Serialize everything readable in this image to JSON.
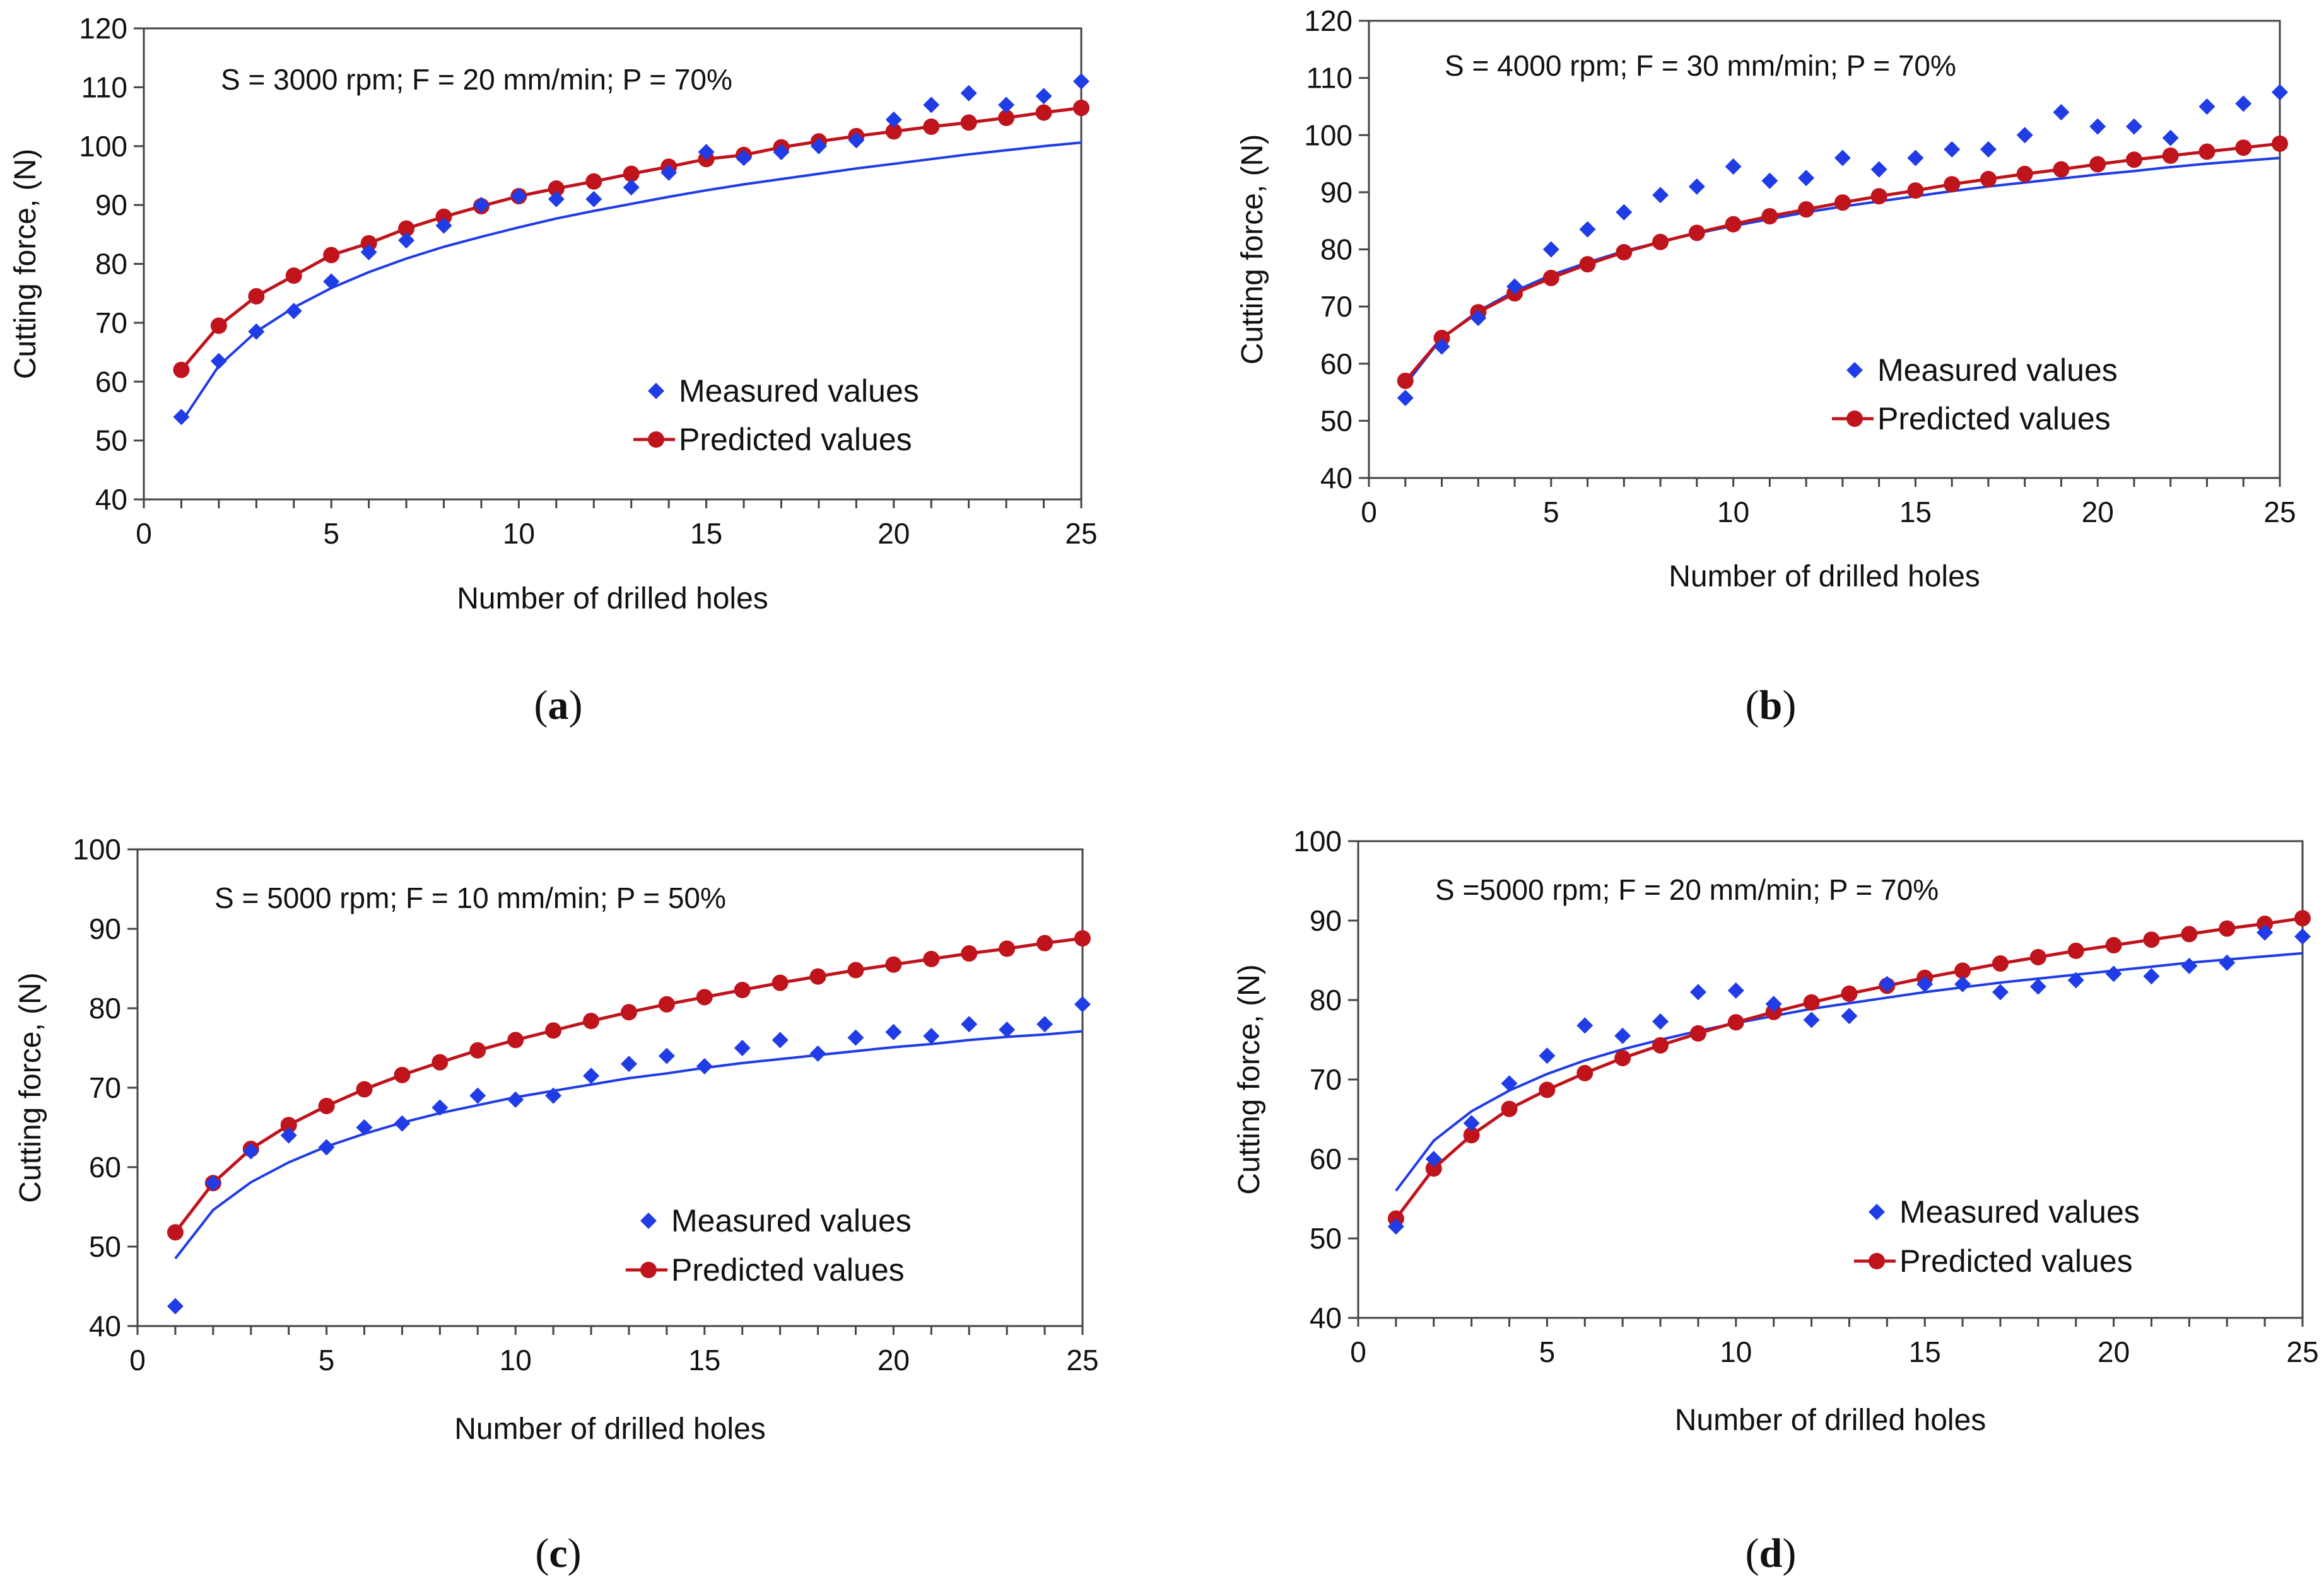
{
  "chart_data": [
    {
      "type": "scatter",
      "panel": "a",
      "annotation": "S = 3000 rpm; F = 20 mm/min; P = 70%",
      "xlabel": "Number of drilled holes",
      "ylabel": "Cutting force, (N)",
      "xlim": [
        0,
        25
      ],
      "ylim": [
        40,
        120
      ],
      "xticks": [
        0,
        5,
        10,
        15,
        20,
        25
      ],
      "yticks": [
        40,
        50,
        60,
        70,
        80,
        90,
        100,
        110,
        120
      ],
      "grid": false,
      "legend_position": "right-center",
      "series": [
        {
          "name": "Measured values",
          "style": "diamond-markers-with-trendline",
          "color": "#1f3ce6",
          "x": [
            1,
            2,
            3,
            4,
            5,
            6,
            7,
            8,
            9,
            10,
            11,
            12,
            13,
            14,
            15,
            16,
            17,
            18,
            19,
            20,
            21,
            22,
            23,
            24,
            25
          ],
          "y": [
            54,
            63.5,
            68.5,
            72,
            77,
            82,
            84,
            86.5,
            90,
            91.5,
            91,
            91,
            93,
            95.5,
            99,
            98,
            99,
            100,
            101,
            104.5,
            107,
            109,
            107,
            108.5,
            111
          ],
          "trendline": [
            53.1,
            62.7,
            68.5,
            72.6,
            75.9,
            78.6,
            80.9,
            82.9,
            84.6,
            86.2,
            87.7,
            89,
            90.2,
            91.4,
            92.5,
            93.5,
            94.4,
            95.3,
            96.2,
            97,
            97.8,
            98.6,
            99.3,
            100,
            100.6
          ]
        },
        {
          "name": "Predicted values",
          "style": "line-with-circle-markers",
          "color": "#c0141c",
          "x": [
            1,
            2,
            3,
            4,
            5,
            6,
            7,
            8,
            9,
            10,
            11,
            12,
            13,
            14,
            15,
            16,
            17,
            18,
            19,
            20,
            21,
            22,
            23,
            24,
            25
          ],
          "y": [
            62,
            69.5,
            74.5,
            78,
            81.5,
            83.5,
            86,
            88,
            89.8,
            91.5,
            92.8,
            94,
            95.3,
            96.5,
            97.8,
            98.5,
            99.8,
            100.8,
            101.7,
            102.5,
            103.3,
            104,
            104.8,
            105.7,
            106.5
          ]
        }
      ]
    },
    {
      "type": "scatter",
      "panel": "b",
      "annotation": "S = 4000 rpm; F = 30 mm/min; P = 70%",
      "xlabel": "Number of drilled holes",
      "ylabel": "Cutting force, (N)",
      "xlim": [
        0,
        25
      ],
      "ylim": [
        40,
        120
      ],
      "xticks": [
        0,
        5,
        10,
        15,
        20,
        25
      ],
      "yticks": [
        40,
        50,
        60,
        70,
        80,
        90,
        100,
        110,
        120
      ],
      "grid": false,
      "legend_position": "right-center",
      "series": [
        {
          "name": "Measured values",
          "style": "diamond-markers-with-trendline",
          "color": "#1f3ce6",
          "x": [
            1,
            2,
            3,
            4,
            5,
            6,
            7,
            8,
            9,
            10,
            11,
            12,
            13,
            14,
            15,
            16,
            17,
            18,
            19,
            20,
            21,
            22,
            23,
            24,
            25
          ],
          "y": [
            54,
            63,
            68,
            73.5,
            80,
            83.5,
            86.5,
            89.5,
            91,
            94.5,
            92,
            92.5,
            96,
            94,
            96,
            97.5,
            97.5,
            100,
            104,
            101.5,
            101.5,
            99.5,
            105,
            105.5,
            107.5
          ],
          "trendline": [
            56.3,
            64.5,
            69.2,
            72.7,
            75.5,
            77.7,
            79.7,
            81.3,
            82.8,
            84.1,
            85.3,
            86.5,
            87.5,
            88.4,
            89.3,
            90.2,
            91,
            91.7,
            92.4,
            93.1,
            93.7,
            94.4,
            95,
            95.5,
            96
          ]
        },
        {
          "name": "Predicted values",
          "style": "line-with-circle-markers",
          "color": "#c0141c",
          "x": [
            1,
            2,
            3,
            4,
            5,
            6,
            7,
            8,
            9,
            10,
            11,
            12,
            13,
            14,
            15,
            16,
            17,
            18,
            19,
            20,
            21,
            22,
            23,
            24,
            25
          ],
          "y": [
            57,
            64.5,
            69,
            72.3,
            75,
            77.4,
            79.5,
            81.3,
            82.9,
            84.4,
            85.8,
            87,
            88.2,
            89.3,
            90.3,
            91.4,
            92.3,
            93.2,
            94,
            94.9,
            95.7,
            96.4,
            97.1,
            97.8,
            98.5
          ]
        }
      ]
    },
    {
      "type": "scatter",
      "panel": "c",
      "annotation": "S = 5000 rpm; F = 10 mm/min; P = 50%",
      "xlabel": "Number of drilled holes",
      "ylabel": "Cutting force, (N)",
      "xlim": [
        0,
        25
      ],
      "ylim": [
        40,
        100
      ],
      "xticks": [
        0,
        5,
        10,
        15,
        20,
        25
      ],
      "yticks": [
        40,
        50,
        60,
        70,
        80,
        90,
        100
      ],
      "grid": false,
      "legend_position": "right-center",
      "series": [
        {
          "name": "Measured values",
          "style": "diamond-markers-with-trendline",
          "color": "#1f3ce6",
          "x": [
            1,
            2,
            3,
            4,
            5,
            6,
            7,
            8,
            9,
            10,
            11,
            12,
            13,
            14,
            15,
            16,
            17,
            18,
            19,
            20,
            21,
            22,
            23,
            24,
            25
          ],
          "y": [
            42.5,
            58,
            62,
            64,
            62.5,
            65,
            65.5,
            67.5,
            69,
            68.5,
            69,
            71.5,
            73,
            74,
            72.7,
            75,
            76,
            74.3,
            76.3,
            77,
            76.5,
            78,
            77.3,
            78,
            80.5
          ],
          "trendline": [
            48.5,
            54.6,
            58.1,
            60.6,
            62.6,
            64.2,
            65.6,
            66.8,
            67.8,
            68.8,
            69.6,
            70.4,
            71.2,
            71.8,
            72.5,
            73.1,
            73.6,
            74.1,
            74.6,
            75.1,
            75.5,
            76,
            76.4,
            76.7,
            77.1
          ]
        },
        {
          "name": "Predicted values",
          "style": "line-with-circle-markers",
          "color": "#c0141c",
          "x": [
            1,
            2,
            3,
            4,
            5,
            6,
            7,
            8,
            9,
            10,
            11,
            12,
            13,
            14,
            15,
            16,
            17,
            18,
            19,
            20,
            21,
            22,
            23,
            24,
            25
          ],
          "y": [
            51.8,
            58,
            62.3,
            65.3,
            67.7,
            69.8,
            71.6,
            73.2,
            74.7,
            76,
            77.2,
            78.4,
            79.5,
            80.5,
            81.4,
            82.3,
            83.2,
            84,
            84.8,
            85.5,
            86.2,
            86.9,
            87.5,
            88.2,
            88.8
          ]
        }
      ]
    },
    {
      "type": "scatter",
      "panel": "d",
      "annotation": "S =5000 rpm; F = 20 mm/min; P = 70%",
      "xlabel": "Number of drilled holes",
      "ylabel": "Cutting force, (N)",
      "xlim": [
        0,
        25
      ],
      "ylim": [
        40,
        100
      ],
      "xticks": [
        0,
        5,
        10,
        15,
        20,
        25
      ],
      "yticks": [
        40,
        50,
        60,
        70,
        80,
        90,
        100
      ],
      "grid": false,
      "legend_position": "right-center",
      "series": [
        {
          "name": "Measured values",
          "style": "diamond-markers-with-trendline",
          "color": "#1f3ce6",
          "x": [
            1,
            2,
            3,
            4,
            5,
            6,
            7,
            8,
            9,
            10,
            11,
            12,
            13,
            14,
            15,
            16,
            17,
            18,
            19,
            20,
            21,
            22,
            23,
            24,
            25
          ],
          "y": [
            51.5,
            60,
            64.5,
            69.5,
            73,
            76.8,
            75.5,
            77.3,
            81,
            81.2,
            79.5,
            77.5,
            78,
            82,
            82,
            82,
            81,
            81.7,
            82.5,
            83.3,
            83,
            84.3,
            84.7,
            88.5,
            88
          ],
          "trendline": [
            56,
            62.3,
            66,
            68.6,
            70.7,
            72.4,
            73.8,
            75,
            76.1,
            77.1,
            78,
            78.9,
            79.6,
            80.3,
            81,
            81.6,
            82.2,
            82.7,
            83.2,
            83.7,
            84.2,
            84.7,
            85.1,
            85.5,
            85.9
          ]
        },
        {
          "name": "Predicted values",
          "style": "line-with-circle-markers",
          "color": "#c0141c",
          "x": [
            1,
            2,
            3,
            4,
            5,
            6,
            7,
            8,
            9,
            10,
            11,
            12,
            13,
            14,
            15,
            16,
            17,
            18,
            19,
            20,
            21,
            22,
            23,
            24,
            25
          ],
          "y": [
            52.5,
            58.8,
            63,
            66.3,
            68.7,
            70.8,
            72.7,
            74.3,
            75.8,
            77.2,
            78.5,
            79.7,
            80.8,
            81.8,
            82.8,
            83.7,
            84.6,
            85.4,
            86.2,
            86.9,
            87.6,
            88.3,
            89,
            89.6,
            90.3
          ]
        }
      ]
    }
  ],
  "captions": [
    {
      "open": "(",
      "letter": "a",
      "close": ")"
    },
    {
      "open": "(",
      "letter": "b",
      "close": ")"
    },
    {
      "open": "(",
      "letter": "c",
      "close": ")"
    },
    {
      "open": "(",
      "letter": "d",
      "close": ")"
    }
  ]
}
